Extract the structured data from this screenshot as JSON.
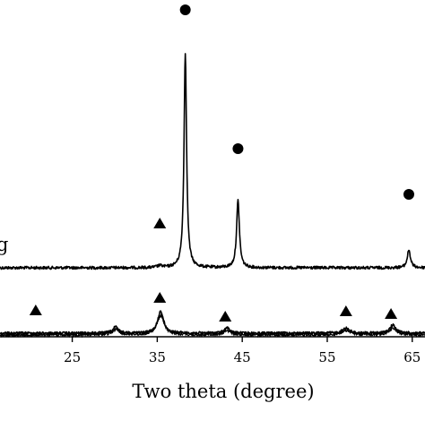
{
  "chart_data": {
    "type": "line",
    "xlabel": "Two theta (degree)",
    "ylabel": "",
    "xlim": [
      16.5,
      66.5
    ],
    "x_ticks": [
      "25",
      "35",
      "45",
      "55",
      "65"
    ],
    "x_tick_values": [
      25,
      35,
      45,
      55,
      65
    ],
    "grid": false,
    "legend": "none",
    "y_scale": "arbitrary intensity (no y axis shown)",
    "series": [
      {
        "label_text": "g",
        "color": "#000000",
        "baseline": 0.3,
        "peaks": [
          {
            "x": 35.3,
            "height": 0.02,
            "width": 0.35
          },
          {
            "x": 38.3,
            "height": 2.4,
            "width": 0.18
          },
          {
            "x": 44.5,
            "height": 0.75,
            "width": 0.2
          },
          {
            "x": 64.6,
            "height": 0.2,
            "width": 0.22
          }
        ],
        "markers": [
          {
            "x": 35.3,
            "shape": "triangle",
            "level": 0.5
          },
          {
            "x": 38.3,
            "shape": "circle",
            "level": 2.88
          },
          {
            "x": 44.5,
            "shape": "circle",
            "level": 1.33
          },
          {
            "x": 64.6,
            "shape": "circle",
            "level": 0.82
          }
        ]
      },
      {
        "label_text": "",
        "color": "#000000",
        "baseline": 0.0,
        "peaks": [
          {
            "x": 30.1,
            "height": 0.07,
            "width": 0.35
          },
          {
            "x": 35.4,
            "height": 0.25,
            "width": 0.4
          },
          {
            "x": 43.2,
            "height": 0.06,
            "width": 0.35
          },
          {
            "x": 57.2,
            "height": 0.06,
            "width": 0.45
          },
          {
            "x": 62.7,
            "height": 0.09,
            "width": 0.4
          }
        ],
        "markers": [
          {
            "x": 20.7,
            "shape": "triangle",
            "level": 0.26
          },
          {
            "x": 35.3,
            "shape": "triangle",
            "level": 0.4
          },
          {
            "x": 43.0,
            "shape": "triangle",
            "level": 0.19
          },
          {
            "x": 57.2,
            "shape": "triangle",
            "level": 0.25
          },
          {
            "x": 62.5,
            "shape": "triangle",
            "level": 0.22
          }
        ]
      }
    ]
  }
}
